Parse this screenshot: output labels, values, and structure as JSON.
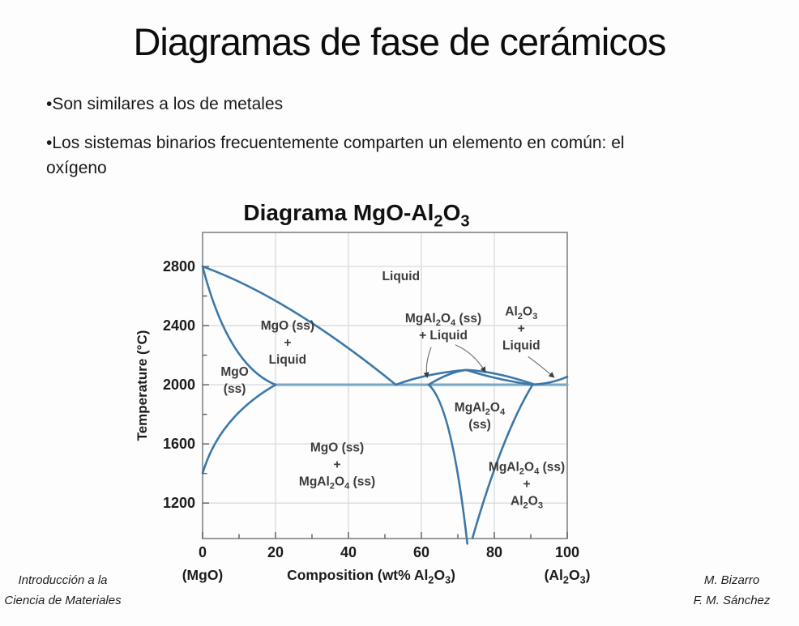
{
  "slide": {
    "title": "Diagramas de fase de cerámicos",
    "bullets": {
      "b1": "•Son similares a los de metales",
      "b2_line1": "•Los sistemas binarios frecuentemente comparten un elemento en común: el",
      "b2_line2": "oxígeno"
    },
    "footer_left_line1": "Introducción a la",
    "footer_left_line2": "Ciencia de Materiales",
    "footer_right_line1": "M. Bizarro",
    "footer_right_line2": "F. M. Sánchez"
  },
  "chart_data": {
    "type": "line",
    "title": "Diagrama MgO-Al~2~O~3~",
    "xlabel": "Composition (wt% Al~2~O~3~)",
    "xlabel_left": "(MgO)",
    "xlabel_right": "(Al~2~O~3~)",
    "ylabel": "Temperature (°C)",
    "xlim": [
      0,
      100
    ],
    "ylim": [
      960,
      3030
    ],
    "xticks": [
      0,
      20,
      40,
      60,
      80,
      100
    ],
    "xticks_minor": [
      10,
      30,
      50,
      70,
      90
    ],
    "yticks": [
      2800,
      2400,
      2000,
      1600,
      1200
    ],
    "yticks_minor": [
      2600,
      2200,
      1800,
      1400
    ],
    "grid": true,
    "legend": "none",
    "colors": {
      "curve": "#3d78a8",
      "isotherm": "#79a8c6",
      "grid": "#d7dbde",
      "axis": "#7e8488",
      "tick": "#5a5f63",
      "tick_label": "#1c1c1c",
      "region_label": "#3c3c3c",
      "arrow": "#6b6b6b",
      "title": "#111111"
    },
    "isotherm": {
      "T": 2000,
      "x_from": 20,
      "x_to": 100
    },
    "curves": [
      {
        "name": "mgo-liquidus",
        "pts": [
          [
            0,
            2800
          ],
          [
            23.5,
            2590
          ],
          [
            53,
            2000
          ]
        ]
      },
      {
        "name": "mgo-solidus",
        "pts": [
          [
            0,
            2800
          ],
          [
            7,
            2130
          ],
          [
            20,
            2000
          ]
        ]
      },
      {
        "name": "mgo-solvus",
        "pts": [
          [
            20,
            2000
          ],
          [
            4.5,
            1780
          ],
          [
            0,
            1400
          ]
        ]
      },
      {
        "name": "spinel-liquidus-left",
        "pts": [
          [
            53,
            2000
          ],
          [
            61,
            2075
          ],
          [
            72.3,
            2100
          ]
        ]
      },
      {
        "name": "spinel-solidus-left",
        "pts": [
          [
            62,
            2000
          ],
          [
            67.5,
            2085
          ],
          [
            72.3,
            2100
          ]
        ]
      },
      {
        "name": "spinel-liquidus-right",
        "pts": [
          [
            72.3,
            2100
          ],
          [
            80.3,
            2091
          ],
          [
            91,
            2002
          ]
        ]
      },
      {
        "name": "spinel-solidus-right",
        "pts": [
          [
            72.3,
            2100
          ],
          [
            81,
            2032
          ],
          [
            90.5,
            2000
          ]
        ]
      },
      {
        "name": "alumina-liquidus",
        "pts": [
          [
            91,
            2002
          ],
          [
            95.8,
            2008
          ],
          [
            100,
            2054
          ]
        ]
      },
      {
        "name": "spinel-solvus-left",
        "pts": [
          [
            62,
            2000
          ],
          [
            68.3,
            1866
          ],
          [
            72.6,
            925
          ]
        ]
      },
      {
        "name": "spinel-solvus-right",
        "pts": [
          [
            90.5,
            2000
          ],
          [
            82.2,
            1666
          ],
          [
            74,
            962
          ]
        ]
      }
    ],
    "regions": [
      {
        "x": 54.4,
        "y": 2734,
        "lines": [
          "Liquid"
        ]
      },
      {
        "x": 23.3,
        "y": 2285,
        "lines": [
          "MgO (ss)",
          "+",
          "Liquid"
        ]
      },
      {
        "x": 8.8,
        "y": 2030,
        "lines": [
          "MgO",
          "(ss)"
        ]
      },
      {
        "x": 66,
        "y": 2392,
        "lines": [
          "MgAl~2~O~4~ (ss)",
          "+ Liquid"
        ]
      },
      {
        "x": 87.4,
        "y": 2380,
        "lines": [
          "Al~2~O~3~",
          "+",
          "Liquid"
        ]
      },
      {
        "x": 76,
        "y": 1790,
        "lines": [
          "MgAl~2~O~4~",
          "(ss)"
        ]
      },
      {
        "x": 36.9,
        "y": 1462,
        "lines": [
          "MgO (ss)",
          "+",
          "MgAl~2~O~4~ (ss)"
        ]
      },
      {
        "x": 88.9,
        "y": 1330,
        "lines": [
          "MgAl~2~O~4~ (ss)",
          "+",
          "Al~2~O~3~"
        ]
      }
    ],
    "arrows": [
      {
        "name": "arrow-to-left-lens",
        "from": [
          62.7,
          2255
        ],
        "ctrl": [
          60.9,
          2140
        ],
        "to": [
          61.6,
          2052
        ]
      },
      {
        "name": "arrow-to-right-lens",
        "from": [
          69.3,
          2270
        ],
        "ctrl": [
          74.4,
          2215
        ],
        "to": [
          77.5,
          2088
        ]
      },
      {
        "name": "arrow-to-al2o3-liquid",
        "from": [
          89.3,
          2190
        ],
        "ctrl": [
          92.9,
          2125
        ],
        "to": [
          96.3,
          2052
        ]
      }
    ]
  }
}
